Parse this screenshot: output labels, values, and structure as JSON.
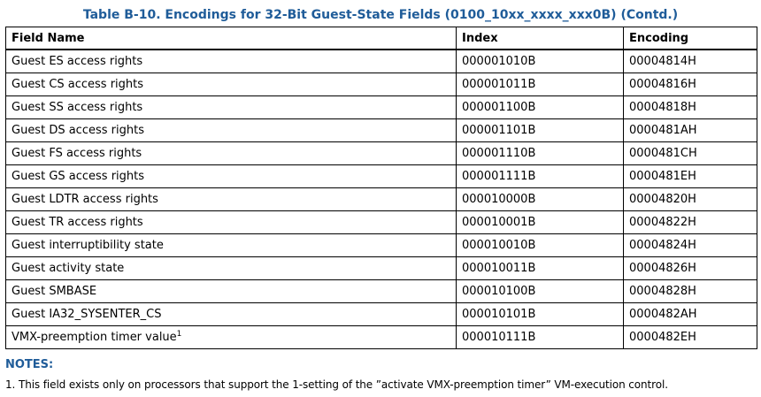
{
  "caption": "Table B-10.  Encodings for 32-Bit Guest-State Fields (0100_10xx_xxxx_xxx0B) (Contd.)",
  "table": {
    "headers": [
      "Field Name",
      "Index",
      "Encoding"
    ],
    "rows": [
      {
        "field": "Guest ES access rights",
        "index": "000001010B",
        "encoding": "00004814H"
      },
      {
        "field": "Guest CS access rights",
        "index": "000001011B",
        "encoding": "00004816H"
      },
      {
        "field": "Guest SS access rights",
        "index": "000001100B",
        "encoding": "00004818H"
      },
      {
        "field": "Guest DS access rights",
        "index": "000001101B",
        "encoding": "0000481AH"
      },
      {
        "field": "Guest FS access rights",
        "index": "000001110B",
        "encoding": "0000481CH"
      },
      {
        "field": "Guest GS access rights",
        "index": "000001111B",
        "encoding": "0000481EH"
      },
      {
        "field": "Guest LDTR access rights",
        "index": "000010000B",
        "encoding": "00004820H"
      },
      {
        "field": "Guest TR access rights",
        "index": "000010001B",
        "encoding": "00004822H"
      },
      {
        "field": "Guest interruptibility state",
        "index": "000010010B",
        "encoding": "00004824H"
      },
      {
        "field": "Guest activity state",
        "index": "000010011B",
        "encoding": "00004826H"
      },
      {
        "field": "Guest SMBASE",
        "index": "000010100B",
        "encoding": "00004828H"
      },
      {
        "field": "Guest IA32_SYSENTER_CS",
        "index": "000010101B",
        "encoding": "0000482AH"
      },
      {
        "field": "VMX-preemption timer value",
        "footnote": "1",
        "index": "000010111B",
        "encoding": "0000482EH"
      }
    ]
  },
  "notes": {
    "heading": "NOTES:",
    "items": [
      "1. This field exists only on processors that support the 1-setting of the ”activate VMX-preemption timer” VM-execution control."
    ]
  }
}
